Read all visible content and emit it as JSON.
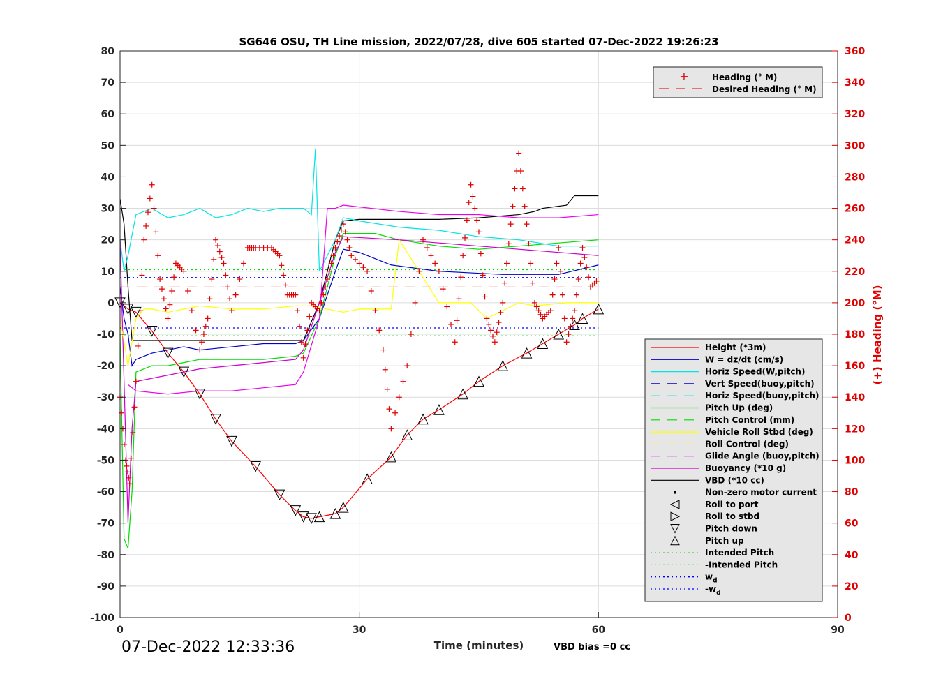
{
  "chart_data": {
    "type": "line",
    "title": "SG646 OSU, TH Line mission, 2022/07/28, dive 605 started 07-Dec-2022 19:26:23",
    "xlabel": "Time (minutes)",
    "ylabel_right": "(+) Heading (°M)",
    "xlim": [
      0,
      90
    ],
    "ylim": [
      -100,
      80
    ],
    "ylim_right": [
      0,
      360
    ],
    "x_ticks": [
      "0",
      "30",
      "60",
      "90"
    ],
    "y_ticks": [
      "80",
      "70",
      "60",
      "50",
      "40",
      "30",
      "20",
      "10",
      "0",
      "-10",
      "-20",
      "-30",
      "-40",
      "-50",
      "-60",
      "-70",
      "-80",
      "-90",
      "-100"
    ],
    "y_ticks_right": [
      "360",
      "340",
      "320",
      "300",
      "280",
      "260",
      "240",
      "220",
      "200",
      "180",
      "160",
      "140",
      "120",
      "100",
      "80",
      "60",
      "40",
      "20",
      "0"
    ],
    "grid": true,
    "timestamp": "07-Dec-2022 12:33:36",
    "vbd_bias": "VBD bias =0 cc",
    "legend_top": [
      {
        "name": "Heading (° M)",
        "color": "#e00000",
        "style": "plus"
      },
      {
        "name": "Desired Heading (° M)",
        "color": "#e00000",
        "style": "dash"
      }
    ],
    "legend_main": [
      {
        "name": "Height (*3m)",
        "color": "#ff0000",
        "style": "solid"
      },
      {
        "name": "W = dz/dt (cm/s)",
        "color": "#0000cc",
        "style": "solid"
      },
      {
        "name": "Horiz Speed(W,pitch)",
        "color": "#00e5e5",
        "style": "solid"
      },
      {
        "name": "Vert Speed(buoy,pitch)",
        "color": "#0000cc",
        "style": "dash"
      },
      {
        "name": "Horiz Speed(buoy,pitch)",
        "color": "#00e5e5",
        "style": "dash"
      },
      {
        "name": "Pitch Up (deg)",
        "color": "#00dd00",
        "style": "solid"
      },
      {
        "name": "Pitch Control (mm)",
        "color": "#00dd00",
        "style": "dash"
      },
      {
        "name": "Vehicle Roll Stbd (deg)",
        "color": "#ffff00",
        "style": "solid"
      },
      {
        "name": "Roll Control (deg)",
        "color": "#ffff00",
        "style": "dash"
      },
      {
        "name": "Glide Angle (buoy,pitch)",
        "color": "#ee00ee",
        "style": "dash"
      },
      {
        "name": "Buoyancy (*10 g)",
        "color": "#cc00cc",
        "style": "solid"
      },
      {
        "name": "VBD (*10 cc)",
        "color": "#000000",
        "style": "solid"
      },
      {
        "name": "Non-zero motor current",
        "color": "#000000",
        "style": "dot"
      },
      {
        "name": "Roll to port",
        "color": "#000000",
        "style": "tri-left"
      },
      {
        "name": "Roll to stbd",
        "color": "#000000",
        "style": "tri-right"
      },
      {
        "name": "Pitch down",
        "color": "#000000",
        "style": "tri-down"
      },
      {
        "name": "Pitch up",
        "color": "#000000",
        "style": "tri-up"
      },
      {
        "name": "Intended Pitch",
        "color": "#00dd00",
        "style": "dotted"
      },
      {
        "name": "-Intended Pitch",
        "color": "#00dd00",
        "style": "dotted"
      },
      {
        "name": "w",
        "sub": "d",
        "color": "#0000ff",
        "style": "dotted"
      },
      {
        "name": "-w",
        "sub": "d",
        "color": "#0000ff",
        "style": "dotted"
      }
    ],
    "reference_lines": {
      "intended_pitch": 10.5,
      "neg_intended_pitch": -10.5,
      "w_d": 8,
      "neg_w_d": -8,
      "desired_heading_deg": 210
    },
    "series": [
      {
        "name": "Height (*3m)",
        "color": "#ff0000",
        "x": [
          0,
          1,
          2,
          4,
          6,
          8,
          10,
          12,
          14,
          17,
          20,
          22,
          23,
          24,
          25,
          27,
          28,
          31,
          34,
          36,
          38,
          40,
          43,
          45,
          48,
          51,
          53,
          55,
          57,
          58,
          60
        ],
        "y": [
          0,
          -2,
          -3,
          -9,
          -16,
          -22,
          -29,
          -37,
          -44,
          -52,
          -61,
          -66,
          -68,
          -68.5,
          -68,
          -67,
          -65,
          -56,
          -49,
          -42,
          -37,
          -34,
          -29,
          -25,
          -20,
          -16,
          -13,
          -10,
          -7,
          -5,
          -2
        ]
      },
      {
        "name": "VBD (*10 cc)",
        "color": "#000000",
        "x": [
          0,
          0.5,
          1,
          1.5,
          23,
          25,
          27,
          28,
          30,
          40,
          45,
          50,
          52,
          53,
          56,
          57,
          60
        ],
        "y": [
          33,
          25,
          5,
          -12,
          -12,
          0,
          20,
          26,
          26.5,
          26.5,
          27,
          28,
          29,
          30,
          31,
          34,
          34
        ]
      },
      {
        "name": "W = dz/dt (cm/s)",
        "color": "#0000cc",
        "x": [
          0,
          0.5,
          1,
          1.5,
          2,
          4,
          6,
          8,
          10,
          14,
          18,
          22,
          23,
          25,
          27,
          28,
          30,
          34,
          40,
          48,
          55,
          60
        ],
        "y": [
          5,
          -5,
          -10,
          -20,
          -18,
          -16,
          -15,
          -14,
          -15,
          -14,
          -13,
          -13,
          -12,
          -5,
          10,
          17,
          16,
          12,
          10,
          9,
          9,
          12
        ]
      },
      {
        "name": "Horiz Speed(W,pitch)",
        "color": "#00e5e5",
        "x": [
          0,
          0.5,
          1,
          2,
          4,
          6,
          8,
          10,
          12,
          14,
          16,
          18,
          20,
          22,
          23,
          24,
          24.5,
          25,
          26,
          27,
          28,
          30,
          35,
          40,
          45,
          50,
          55,
          60
        ],
        "y": [
          20,
          10,
          15,
          28,
          30,
          27,
          28,
          30,
          27,
          28,
          30,
          29,
          30,
          30,
          30,
          28,
          49,
          10,
          15,
          20,
          27,
          26,
          24,
          23,
          21,
          20,
          18,
          18
        ]
      },
      {
        "name": "Pitch Up (deg)",
        "color": "#00dd00",
        "x": [
          0,
          0.5,
          1,
          1.5,
          2,
          4,
          6,
          8,
          10,
          14,
          18,
          22,
          23,
          25,
          27,
          28,
          32,
          35,
          40,
          45,
          50,
          55,
          60
        ],
        "y": [
          -10,
          -75,
          -78,
          -60,
          -22,
          -20,
          -20,
          -19,
          -18,
          -18,
          -18,
          -17,
          -16,
          -5,
          15,
          22,
          22,
          20,
          18,
          17,
          18,
          19,
          20
        ]
      },
      {
        "name": "Buoyancy (*10 g)",
        "color": "#cc00cc",
        "x": [
          0,
          1,
          1.5,
          2,
          6,
          10,
          14,
          18,
          22,
          23,
          25,
          27,
          28,
          35,
          40,
          45,
          50,
          55,
          60
        ],
        "y": [
          20,
          -70,
          -40,
          -25,
          -23,
          -21,
          -20,
          -19,
          -18,
          -15,
          0,
          16,
          21,
          20,
          19,
          18,
          17,
          16,
          15
        ]
      },
      {
        "name": "Glide Angle (buoy,pitch)",
        "color": "#ee00ee",
        "x": [
          1,
          2,
          6,
          10,
          14,
          18,
          22,
          23,
          25,
          26,
          27,
          28,
          35,
          40,
          45,
          50,
          55,
          60
        ],
        "y": [
          -26,
          -28,
          -29,
          -28,
          -28,
          -27,
          -26,
          -22,
          -5,
          30,
          30,
          31,
          29,
          28,
          28,
          27,
          27,
          28
        ]
      },
      {
        "name": "Vehicle Roll Stbd (deg)",
        "color": "#ffff00",
        "x": [
          0,
          1,
          2,
          3,
          4,
          6,
          8,
          10,
          14,
          18,
          22,
          24,
          26,
          28,
          30,
          34,
          35,
          40,
          44,
          46,
          50,
          52,
          56,
          60
        ],
        "y": [
          -5,
          -20,
          -5,
          -2,
          -2,
          -3,
          -2,
          -1,
          -2,
          -2,
          -1,
          -1,
          -2,
          -3,
          -2,
          -2,
          20,
          0,
          0,
          -5,
          0,
          -1,
          0,
          0
        ]
      }
    ],
    "heading": {
      "name": "Heading (° M)",
      "color": "#e00000",
      "x": [
        0,
        0.7,
        1.2,
        2,
        3,
        4,
        5,
        6,
        7,
        8,
        10,
        11,
        12,
        13,
        14,
        16,
        17,
        19,
        20,
        21,
        22,
        23,
        24,
        25,
        26,
        27,
        28,
        29,
        31,
        33,
        34,
        36,
        38,
        40,
        42,
        43,
        44,
        45,
        46,
        47,
        48,
        49,
        50,
        51,
        52,
        53,
        54,
        55,
        56,
        57,
        58,
        59,
        60
      ],
      "y": [
        140,
        100,
        85,
        150,
        240,
        275,
        215,
        190,
        225,
        220,
        170,
        190,
        240,
        225,
        195,
        235,
        235,
        235,
        230,
        205,
        205,
        165,
        200,
        195,
        215,
        235,
        250,
        230,
        220,
        170,
        120,
        160,
        240,
        220,
        175,
        230,
        275,
        245,
        190,
        175,
        200,
        250,
        295,
        250,
        200,
        190,
        195,
        235,
        175,
        195,
        235,
        210,
        215
      ]
    }
  }
}
